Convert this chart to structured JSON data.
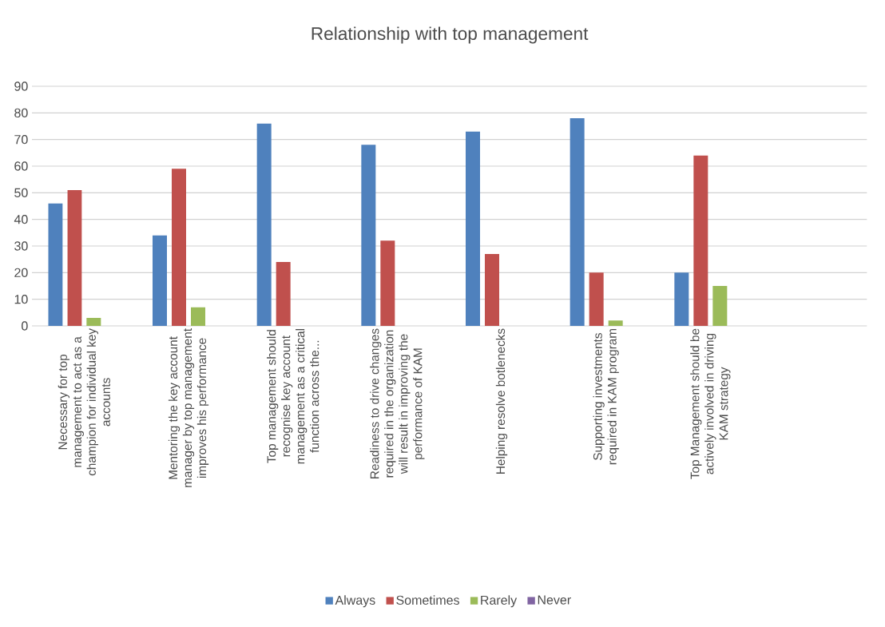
{
  "chart_data": {
    "type": "bar",
    "title": "Relationship with top management",
    "categories": [
      "Necessary for top management to act as a champion for individual key accounts",
      "Mentoring the key account manager by top management improves his performance",
      "Top management should recognise key account management as a critical function across the...",
      "Readiness to drive changes required in the organization will result in improving the performance of KAM",
      "Helping resolve botlenecks",
      "Supporting investments required in KAM program",
      "Top Management should be actively involved in driving KAM strategy",
      null
    ],
    "series": [
      {
        "name": "Always",
        "color": "#4f81bd",
        "values": [
          46,
          34,
          76,
          68,
          73,
          78,
          20,
          null
        ]
      },
      {
        "name": "Sometimes",
        "color": "#c0504d",
        "values": [
          51,
          59,
          24,
          32,
          27,
          20,
          64,
          null
        ]
      },
      {
        "name": "Rarely",
        "color": "#9bbb59",
        "values": [
          3,
          7,
          0,
          0,
          0,
          2,
          15,
          null
        ]
      },
      {
        "name": "Never",
        "color": "#8064a2",
        "values": [
          0,
          0,
          0,
          0,
          0,
          0,
          0,
          null
        ]
      }
    ],
    "ylim": [
      0,
      90
    ],
    "yticks": [
      0,
      10,
      20,
      30,
      40,
      50,
      60,
      70,
      80,
      90
    ],
    "grid": "y",
    "legend": "bottom"
  }
}
